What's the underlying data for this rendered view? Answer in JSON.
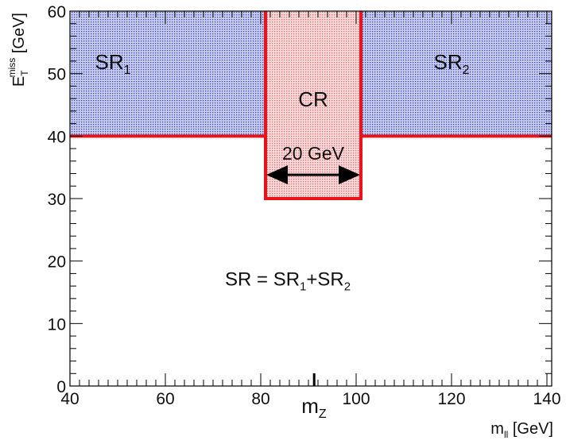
{
  "chart_data": {
    "type": "region-diagram",
    "xlim": [
      40,
      141
    ],
    "ylim": [
      0,
      60
    ],
    "x_ticks": [
      40,
      60,
      80,
      100,
      120,
      140
    ],
    "y_ticks": [
      0,
      10,
      20,
      30,
      40,
      50,
      60
    ],
    "x_minor_step": 2,
    "y_minor_step": 2,
    "xlabel": {
      "base": "m",
      "sub": "ll",
      "unit": " [GeV]"
    },
    "ylabel": {
      "base": "E",
      "sub": "T",
      "sup": "miss",
      "unit": " [GeV]"
    },
    "regions": [
      {
        "name": "SR1",
        "label": "SR",
        "label_sub": "1",
        "x": [
          40,
          81
        ],
        "y": [
          40,
          60
        ],
        "fill": "#aab0e0",
        "stroke": "#e8141c",
        "label_pos": [
          49,
          52
        ]
      },
      {
        "name": "CR",
        "label": "CR",
        "label_sub": "",
        "x": [
          81,
          101
        ],
        "y": [
          30,
          60
        ],
        "fill": "#f0b9b9",
        "stroke": "#e8141c",
        "label_pos": [
          91,
          46
        ]
      },
      {
        "name": "SR2",
        "label": "SR",
        "label_sub": "2",
        "x": [
          101,
          141
        ],
        "y": [
          40,
          60
        ],
        "fill": "#aab0e0",
        "stroke": "#e8141c",
        "label_pos": [
          120,
          52
        ]
      }
    ],
    "width_arrow": {
      "x": [
        81,
        101
      ],
      "y": 33.8,
      "label": "20 GeV"
    },
    "z_marker": {
      "x": 91.2,
      "label": "m",
      "label_sub": "Z"
    },
    "formula": {
      "parts": [
        "SR = SR",
        "1",
        "+SR",
        "2"
      ]
    },
    "grid": false,
    "legend": "none"
  }
}
